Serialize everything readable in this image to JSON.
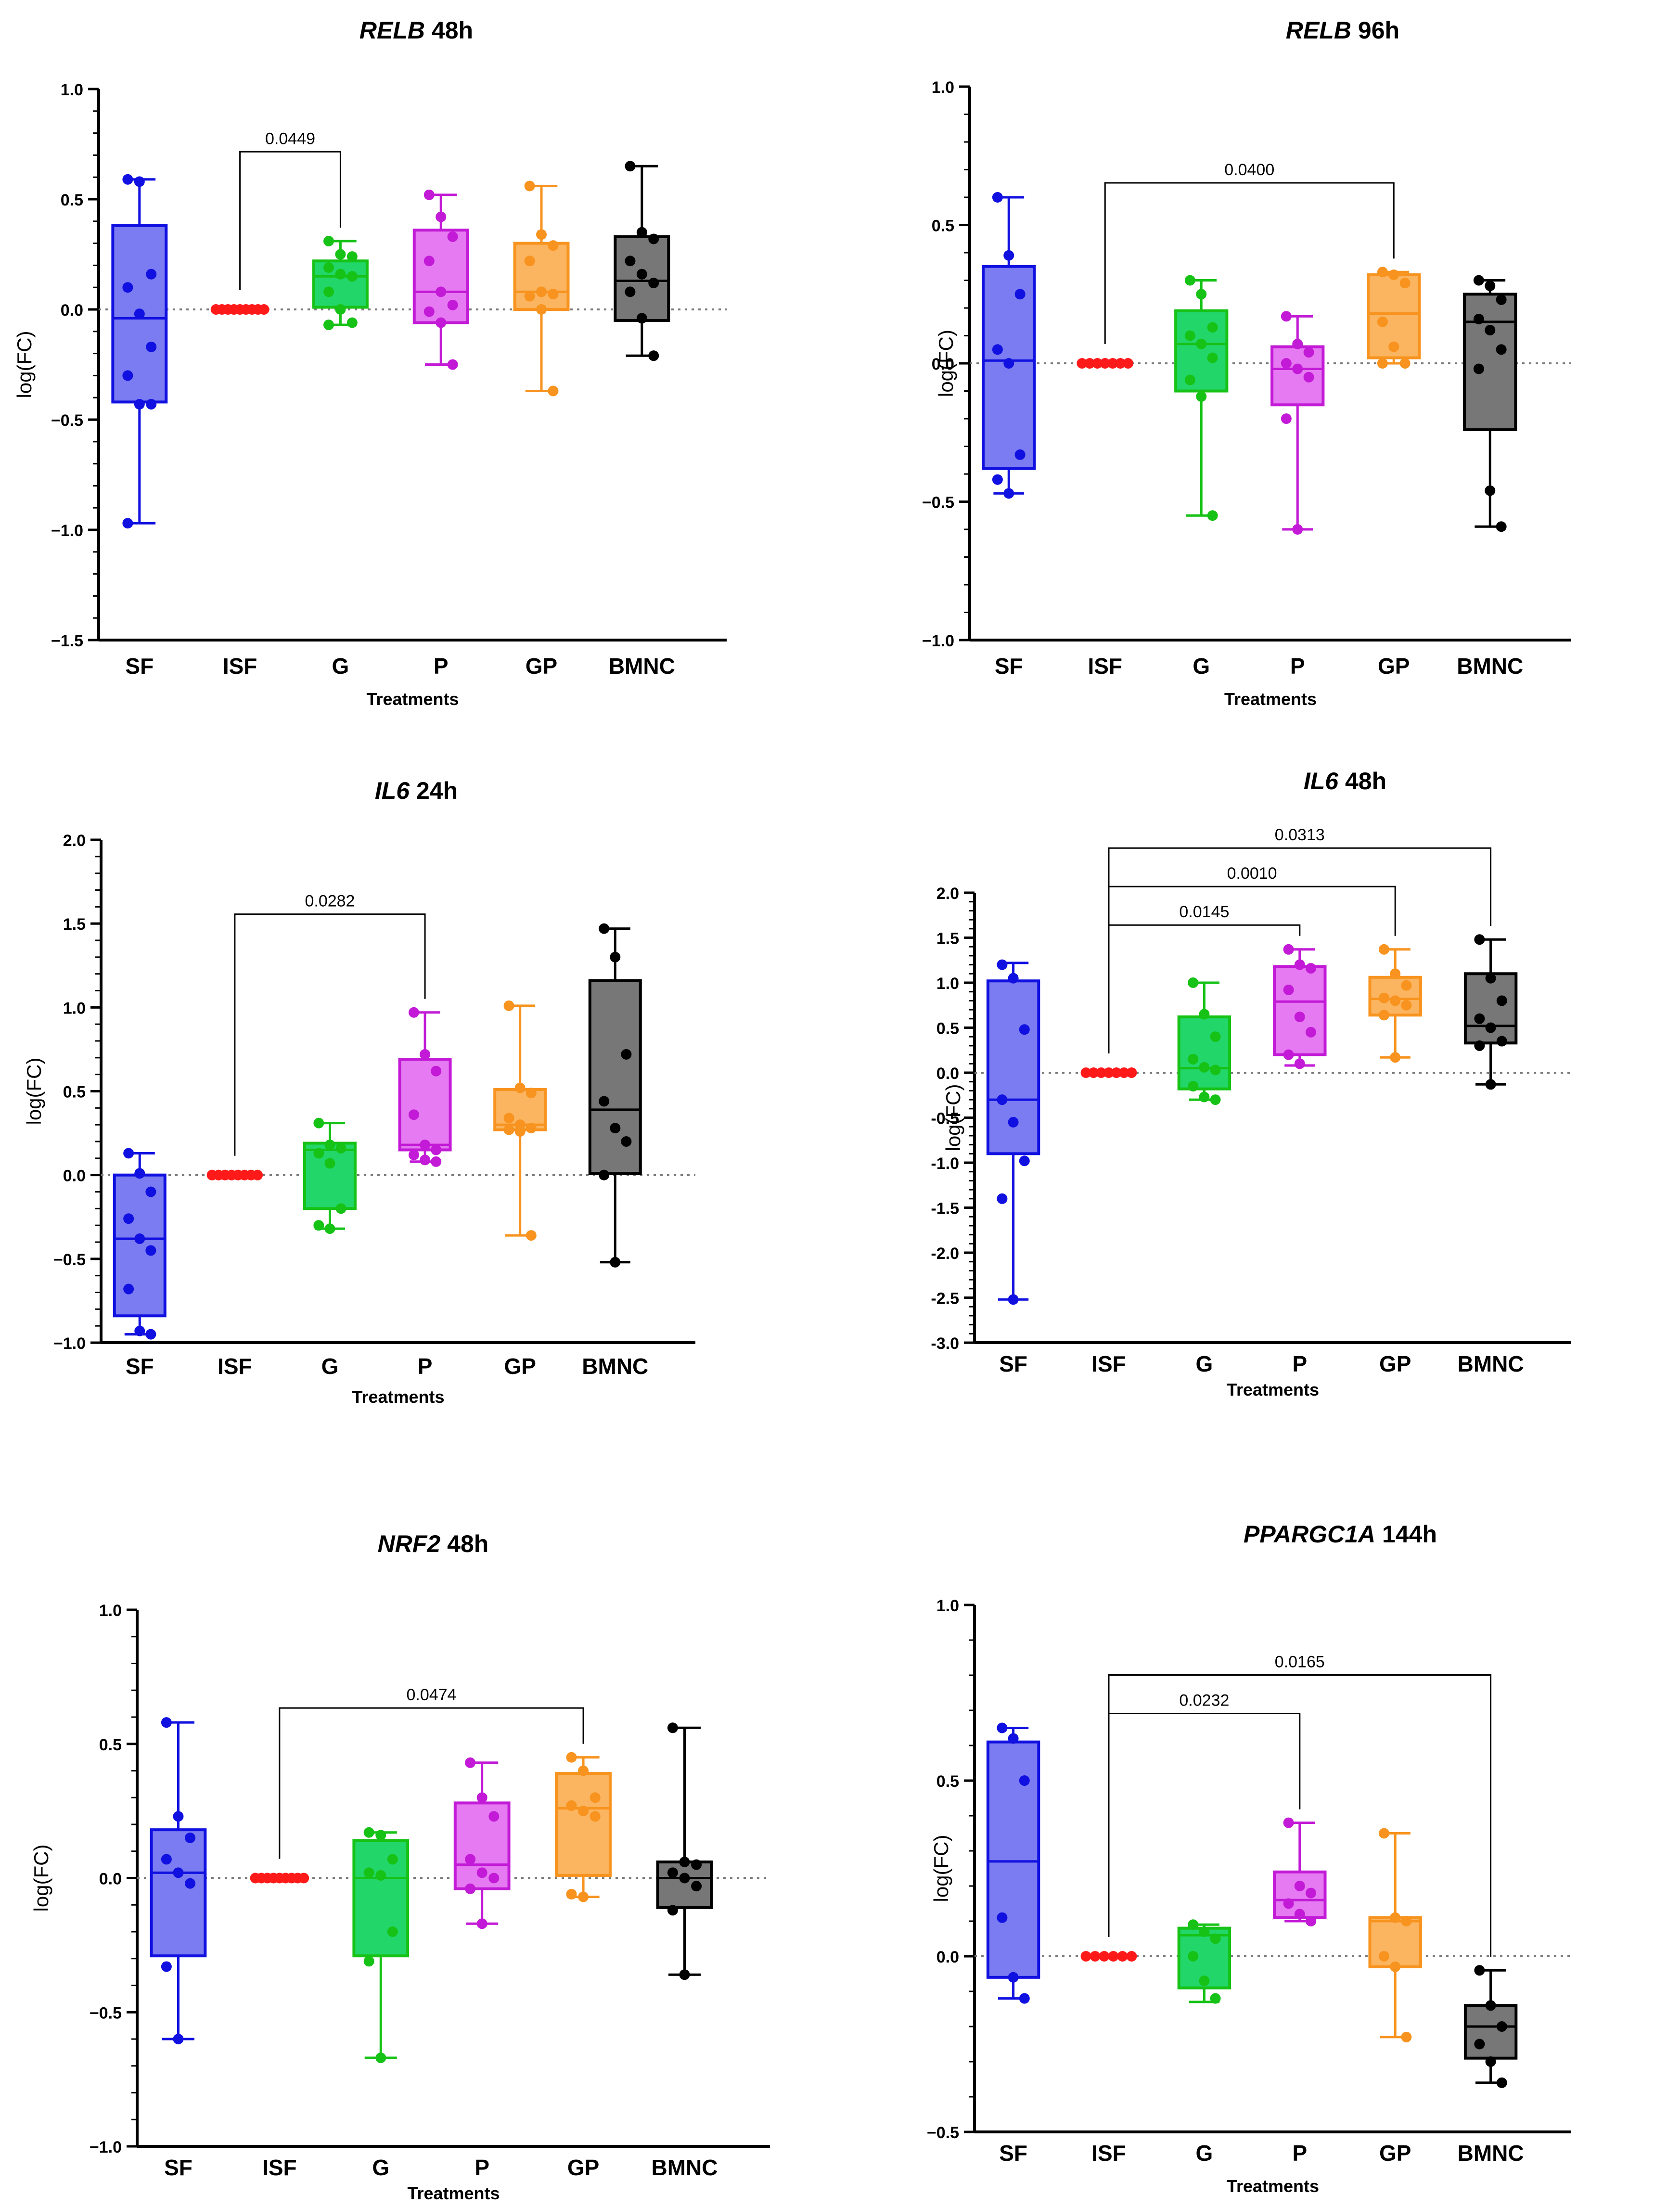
{
  "figure": {
    "treatments_label": "Treatments",
    "ylabel_default": "log(FC)"
  },
  "colors": {
    "SF": {
      "stroke": "#1010e0",
      "fill": "#7b7bf2",
      "point": "#1010e0"
    },
    "ISF": {
      "stroke": "#ff1a1a",
      "fill": "#ff1a1a",
      "point": "#ff1a1a"
    },
    "G": {
      "stroke": "#16c216",
      "fill": "#22d66a",
      "point": "#16c216"
    },
    "P": {
      "stroke": "#c21ad6",
      "fill": "#e67af2",
      "point": "#c21ad6"
    },
    "GP": {
      "stroke": "#f7931e",
      "fill": "#fbb45f",
      "point": "#f7931e"
    },
    "BMNC": {
      "stroke": "#000000",
      "fill": "#777777",
      "point": "#000000"
    }
  },
  "chart_data": [
    {
      "type": "box",
      "title_gene": "RELB",
      "title_time": " 48h",
      "xlabel": "Treatments",
      "ylabel": "log(FC)",
      "ylim": [
        -1.5,
        1.0
      ],
      "yticks": [
        "1.0",
        "0.5",
        "0.0",
        "−0.5",
        "−1.0",
        "−1.5"
      ],
      "ytick_values": [
        1.0,
        0.5,
        0.0,
        -0.5,
        -1.0,
        -1.5
      ],
      "categories": [
        "SF",
        "ISF",
        "G",
        "P",
        "GP",
        "BMNC"
      ],
      "boxes": {
        "SF": {
          "min": -0.97,
          "q1": -0.42,
          "median": -0.04,
          "q3": 0.38,
          "max": 0.59,
          "points": [
            0.59,
            0.58,
            0.16,
            0.1,
            -0.02,
            -0.17,
            -0.3,
            -0.43,
            -0.43,
            -0.97
          ]
        },
        "ISF": {
          "min": 0,
          "q1": 0,
          "median": 0,
          "q3": 0,
          "max": 0,
          "points": [
            0,
            0,
            0,
            0,
            0,
            0,
            0,
            0,
            0
          ]
        },
        "G": {
          "min": -0.07,
          "q1": 0.01,
          "median": 0.15,
          "q3": 0.22,
          "max": 0.31,
          "points": [
            0.31,
            0.25,
            0.24,
            0.19,
            0.16,
            0.15,
            0.08,
            0.0,
            -0.06,
            -0.07
          ]
        },
        "P": {
          "min": -0.25,
          "q1": -0.06,
          "median": 0.08,
          "q3": 0.36,
          "max": 0.52,
          "points": [
            0.52,
            0.42,
            0.33,
            0.22,
            0.08,
            0.02,
            -0.01,
            -0.06,
            -0.25
          ]
        },
        "GP": {
          "min": -0.37,
          "q1": 0.0,
          "median": 0.08,
          "q3": 0.3,
          "max": 0.56,
          "points": [
            0.56,
            0.34,
            0.29,
            0.22,
            0.08,
            0.07,
            0.06,
            0.0,
            -0.37
          ]
        },
        "BMNC": {
          "min": -0.21,
          "q1": -0.05,
          "median": 0.13,
          "q3": 0.33,
          "max": 0.65,
          "points": [
            0.65,
            0.35,
            0.32,
            0.22,
            0.16,
            0.12,
            0.08,
            -0.04,
            -0.21
          ]
        }
      },
      "comparisons": [
        {
          "from": "ISF",
          "to": "G",
          "label": "0.0449"
        }
      ]
    },
    {
      "type": "box",
      "title_gene": "RELB",
      "title_time": " 96h",
      "xlabel": "Treatments",
      "ylabel": "log(FC)",
      "ylim": [
        -1.0,
        1.0
      ],
      "yticks": [
        "1.0",
        "0.5",
        "0.0",
        "−0.5",
        "−1.0"
      ],
      "ytick_values": [
        1.0,
        0.5,
        0.0,
        -0.5,
        -1.0
      ],
      "categories": [
        "SF",
        "ISF",
        "G",
        "P",
        "GP",
        "BMNC"
      ],
      "boxes": {
        "SF": {
          "min": -0.47,
          "q1": -0.38,
          "median": 0.01,
          "q3": 0.35,
          "max": 0.6,
          "points": [
            0.6,
            0.39,
            0.25,
            0.05,
            0.0,
            -0.33,
            -0.42,
            -0.47
          ]
        },
        "ISF": {
          "min": 0,
          "q1": 0,
          "median": 0,
          "q3": 0,
          "max": 0,
          "points": [
            0,
            0,
            0,
            0,
            0,
            0,
            0
          ]
        },
        "G": {
          "min": -0.55,
          "q1": -0.1,
          "median": 0.07,
          "q3": 0.19,
          "max": 0.3,
          "points": [
            0.3,
            0.25,
            0.13,
            0.1,
            0.07,
            0.02,
            -0.06,
            -0.12,
            -0.55
          ]
        },
        "P": {
          "min": -0.6,
          "q1": -0.15,
          "median": -0.02,
          "q3": 0.06,
          "max": 0.17,
          "points": [
            0.17,
            0.07,
            0.04,
            0.0,
            -0.02,
            -0.05,
            -0.2,
            -0.6
          ]
        },
        "GP": {
          "min": 0.0,
          "q1": 0.02,
          "median": 0.18,
          "q3": 0.32,
          "max": 0.33,
          "points": [
            0.33,
            0.32,
            0.29,
            0.15,
            0.06,
            0.0,
            0.0
          ]
        },
        "BMNC": {
          "min": -0.59,
          "q1": -0.24,
          "median": 0.15,
          "q3": 0.25,
          "max": 0.3,
          "points": [
            0.3,
            0.28,
            0.23,
            0.16,
            0.12,
            0.05,
            -0.02,
            -0.46,
            -0.59
          ]
        }
      },
      "comparisons": [
        {
          "from": "ISF",
          "to": "GP",
          "label": "0.0400"
        }
      ]
    },
    {
      "type": "box",
      "title_gene": "IL6",
      "title_time": " 24h",
      "xlabel": "Treatments",
      "ylabel": "log(FC)",
      "ylim": [
        -1.0,
        2.0
      ],
      "yticks": [
        "2.0",
        "1.5",
        "1.0",
        "0.5",
        "0.0",
        "−0.5",
        "−1.0"
      ],
      "ytick_values": [
        2.0,
        1.5,
        1.0,
        0.5,
        0.0,
        -0.5,
        -1.0
      ],
      "categories": [
        "SF",
        "ISF",
        "G",
        "P",
        "GP",
        "BMNC"
      ],
      "boxes": {
        "SF": {
          "min": -0.95,
          "q1": -0.84,
          "median": -0.38,
          "q3": 0.0,
          "max": 0.13,
          "points": [
            0.13,
            0.01,
            -0.1,
            -0.26,
            -0.38,
            -0.45,
            -0.68,
            -0.93,
            -0.95
          ]
        },
        "ISF": {
          "min": 0,
          "q1": 0,
          "median": 0,
          "q3": 0,
          "max": 0,
          "points": [
            0,
            0,
            0,
            0,
            0,
            0,
            0,
            0
          ]
        },
        "G": {
          "min": -0.32,
          "q1": -0.2,
          "median": 0.15,
          "q3": 0.19,
          "max": 0.31,
          "points": [
            0.31,
            0.18,
            0.16,
            0.13,
            0.07,
            -0.2,
            -0.3,
            -0.32
          ]
        },
        "P": {
          "min": 0.08,
          "q1": 0.15,
          "median": 0.18,
          "q3": 0.69,
          "max": 0.97,
          "points": [
            0.97,
            0.72,
            0.62,
            0.36,
            0.18,
            0.15,
            0.12,
            0.09,
            0.08
          ]
        },
        "GP": {
          "min": -0.36,
          "q1": 0.27,
          "median": 0.3,
          "q3": 0.51,
          "max": 1.01,
          "points": [
            1.01,
            0.52,
            0.49,
            0.34,
            0.3,
            0.28,
            0.27,
            0.26,
            -0.36
          ]
        },
        "BMNC": {
          "min": -0.52,
          "q1": 0.01,
          "median": 0.39,
          "q3": 1.16,
          "max": 1.47,
          "points": [
            1.47,
            1.3,
            0.72,
            0.44,
            0.28,
            0.2,
            0.0,
            -0.52
          ]
        }
      },
      "comparisons": [
        {
          "from": "ISF",
          "to": "P",
          "label": "0.0282"
        }
      ]
    },
    {
      "type": "box",
      "title_gene": "IL6",
      "title_time": " 48h",
      "xlabel": "Treatments",
      "ylabel": "log(FC)",
      "ylim": [
        -3.0,
        2.0
      ],
      "yticks": [
        "2.0",
        "1.5",
        "1.0",
        "0.5",
        "0.0",
        "-0.5",
        "-1.0",
        "-1.5",
        "-2.0",
        "-2.5",
        "-3.0"
      ],
      "ytick_values": [
        2.0,
        1.5,
        1.0,
        0.5,
        0.0,
        -0.5,
        -1.0,
        -1.5,
        -2.0,
        -2.5,
        -3.0
      ],
      "categories": [
        "SF",
        "ISF",
        "G",
        "P",
        "GP",
        "BMNC"
      ],
      "boxes": {
        "SF": {
          "min": -2.52,
          "q1": -0.9,
          "median": -0.3,
          "q3": 1.02,
          "max": 1.22,
          "points": [
            1.2,
            1.05,
            0.48,
            -0.3,
            -0.55,
            -0.98,
            -1.4,
            -2.52
          ]
        },
        "ISF": {
          "min": 0,
          "q1": 0,
          "median": 0,
          "q3": 0,
          "max": 0,
          "points": [
            0,
            0,
            0,
            0,
            0,
            0,
            0
          ]
        },
        "G": {
          "min": -0.3,
          "q1": -0.18,
          "median": 0.05,
          "q3": 0.62,
          "max": 1.0,
          "points": [
            1.0,
            0.65,
            0.4,
            0.15,
            0.06,
            0.03,
            -0.15,
            -0.27,
            -0.3
          ]
        },
        "P": {
          "min": 0.08,
          "q1": 0.2,
          "median": 0.79,
          "q3": 1.18,
          "max": 1.37,
          "points": [
            1.37,
            1.2,
            1.16,
            0.92,
            0.62,
            0.45,
            0.2,
            0.1
          ]
        },
        "GP": {
          "min": 0.17,
          "q1": 0.64,
          "median": 0.82,
          "q3": 1.06,
          "max": 1.37,
          "points": [
            1.37,
            1.1,
            0.97,
            0.83,
            0.8,
            0.75,
            0.64,
            0.17
          ]
        },
        "BMNC": {
          "min": -0.13,
          "q1": 0.33,
          "median": 0.52,
          "q3": 1.1,
          "max": 1.48,
          "points": [
            1.48,
            1.05,
            0.8,
            0.6,
            0.5,
            0.35,
            0.3,
            -0.13
          ]
        }
      },
      "comparisons": [
        {
          "from": "ISF",
          "to": "P",
          "label": "0.0145"
        },
        {
          "from": "ISF",
          "to": "GP",
          "label": "0.0010"
        },
        {
          "from": "ISF",
          "to": "BMNC",
          "label": "0.0313"
        }
      ]
    },
    {
      "type": "box",
      "title_gene": "NRF2",
      "title_time": " 48h",
      "xlabel": "Treatments",
      "ylabel": "log(FC)",
      "ylim": [
        -1.0,
        1.0
      ],
      "yticks": [
        "1.0",
        "0.5",
        "0.0",
        "−0.5",
        "−1.0"
      ],
      "ytick_values": [
        1.0,
        0.5,
        0.0,
        -0.5,
        -1.0
      ],
      "categories": [
        "SF",
        "ISF",
        "G",
        "P",
        "GP",
        "BMNC"
      ],
      "boxes": {
        "SF": {
          "min": -0.6,
          "q1": -0.29,
          "median": 0.02,
          "q3": 0.18,
          "max": 0.58,
          "points": [
            0.58,
            0.23,
            0.15,
            0.07,
            0.02,
            -0.02,
            -0.33,
            -0.6
          ]
        },
        "ISF": {
          "min": 0,
          "q1": 0,
          "median": 0,
          "q3": 0,
          "max": 0,
          "points": [
            0,
            0,
            0,
            0,
            0,
            0,
            0,
            0,
            0
          ]
        },
        "G": {
          "min": -0.67,
          "q1": -0.29,
          "median": 0.0,
          "q3": 0.14,
          "max": 0.17,
          "points": [
            0.17,
            0.16,
            0.07,
            0.02,
            0.01,
            -0.2,
            -0.31,
            -0.67
          ]
        },
        "P": {
          "min": -0.17,
          "q1": -0.04,
          "median": 0.05,
          "q3": 0.28,
          "max": 0.43,
          "points": [
            0.43,
            0.3,
            0.23,
            0.07,
            0.02,
            0.0,
            -0.04,
            -0.17
          ]
        },
        "GP": {
          "min": -0.07,
          "q1": 0.01,
          "median": 0.26,
          "q3": 0.39,
          "max": 0.45,
          "points": [
            0.45,
            0.4,
            0.3,
            0.27,
            0.25,
            0.23,
            -0.06,
            -0.07
          ]
        },
        "BMNC": {
          "min": -0.36,
          "q1": -0.11,
          "median": 0.0,
          "q3": 0.06,
          "max": 0.56,
          "points": [
            0.56,
            0.06,
            0.05,
            0.02,
            0.0,
            -0.03,
            -0.12,
            -0.36
          ]
        }
      },
      "comparisons": [
        {
          "from": "ISF",
          "to": "GP",
          "label": "0.0474"
        }
      ]
    },
    {
      "type": "box",
      "title_gene": "PPARGC1A",
      "title_time": " 144h",
      "xlabel": "Treatments",
      "ylabel": "log(FC)",
      "ylim": [
        -0.5,
        1.0
      ],
      "yticks": [
        "1.0",
        "0.5",
        "0.0",
        "−0.5"
      ],
      "ytick_values": [
        1.0,
        0.5,
        0.0,
        -0.5
      ],
      "categories": [
        "SF",
        "ISF",
        "G",
        "P",
        "GP",
        "BMNC"
      ],
      "boxes": {
        "SF": {
          "min": -0.12,
          "q1": -0.06,
          "median": 0.27,
          "q3": 0.61,
          "max": 0.65,
          "points": [
            0.65,
            0.62,
            0.5,
            0.11,
            -0.06,
            -0.12
          ]
        },
        "ISF": {
          "min": 0,
          "q1": 0,
          "median": 0,
          "q3": 0,
          "max": 0,
          "points": [
            0,
            0,
            0,
            0,
            0,
            0
          ]
        },
        "G": {
          "min": -0.13,
          "q1": -0.09,
          "median": 0.06,
          "q3": 0.08,
          "max": 0.09,
          "points": [
            0.09,
            0.07,
            0.05,
            0.0,
            -0.07,
            -0.12
          ]
        },
        "P": {
          "min": 0.1,
          "q1": 0.11,
          "median": 0.16,
          "q3": 0.24,
          "max": 0.38,
          "points": [
            0.38,
            0.2,
            0.18,
            0.15,
            0.12,
            0.1
          ]
        },
        "GP": {
          "min": -0.23,
          "q1": -0.03,
          "median": 0.1,
          "q3": 0.11,
          "max": 0.35,
          "points": [
            0.35,
            0.11,
            0.1,
            0.0,
            -0.03,
            -0.23
          ]
        },
        "BMNC": {
          "min": -0.36,
          "q1": -0.29,
          "median": -0.2,
          "q3": -0.14,
          "max": -0.04,
          "points": [
            -0.04,
            -0.14,
            -0.2,
            -0.25,
            -0.3,
            -0.36
          ]
        }
      },
      "comparisons": [
        {
          "from": "ISF",
          "to": "P",
          "label": "0.0232"
        },
        {
          "from": "ISF",
          "to": "BMNC",
          "label": "0.0165"
        }
      ]
    }
  ]
}
